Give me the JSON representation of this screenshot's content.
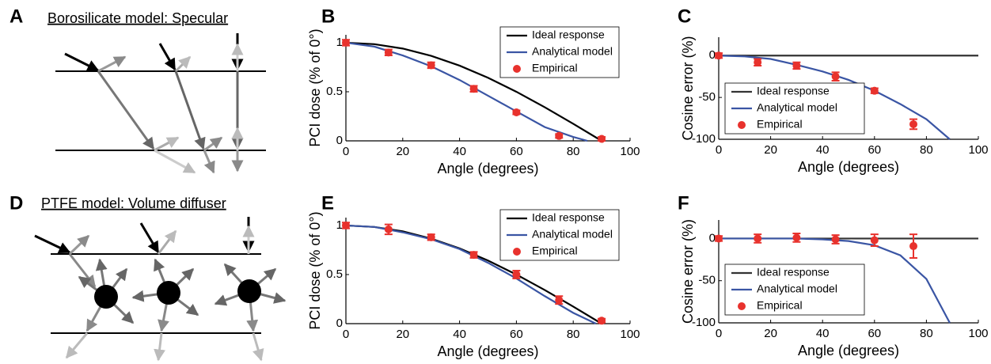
{
  "diagrams": [
    {
      "panel_label": "A",
      "title": "Borosilicate model: Specular"
    },
    {
      "panel_label": "D",
      "title": "PTFE model: Volume diffuser"
    }
  ],
  "chart_data": [
    {
      "type": "line",
      "panel_label": "B",
      "xlabel": "Angle (degrees)",
      "ylabel": "PCI dose (% of 0°)",
      "xlim": [
        0,
        100
      ],
      "xticks": [
        0,
        20,
        40,
        60,
        80,
        100
      ],
      "ylim": [
        0,
        1.08
      ],
      "yticks": [
        0,
        0.5,
        1
      ],
      "legend": "upper right",
      "series": [
        {
          "name": "Ideal response",
          "color": "#000000",
          "style": "line",
          "x": [
            0,
            10,
            20,
            30,
            40,
            50,
            60,
            70,
            80,
            90
          ],
          "values": [
            1,
            0.985,
            0.94,
            0.866,
            0.766,
            0.643,
            0.5,
            0.342,
            0.174,
            0
          ]
        },
        {
          "name": "Analytical model",
          "color": "#3a55a4",
          "style": "line",
          "x": [
            0,
            10,
            20,
            30,
            40,
            50,
            60,
            70,
            80,
            85
          ],
          "values": [
            1,
            0.96,
            0.87,
            0.76,
            0.62,
            0.46,
            0.3,
            0.14,
            0.04,
            0
          ]
        },
        {
          "name": "Empirical",
          "color": "#e8322d",
          "style": "marker",
          "x": [
            0,
            15,
            30,
            45,
            60,
            75,
            90
          ],
          "values": [
            1,
            0.9,
            0.77,
            0.53,
            0.29,
            0.05,
            0.02
          ],
          "errors": [
            0.03,
            0.03,
            0.03,
            0.03,
            0.02,
            0.02,
            0.02
          ]
        }
      ]
    },
    {
      "type": "line",
      "panel_label": "C",
      "xlabel": "Angle (degrees)",
      "ylabel": "Cosine error (%)",
      "xlim": [
        0,
        100
      ],
      "xticks": [
        0,
        20,
        40,
        60,
        80,
        100
      ],
      "ylim": [
        -100,
        22
      ],
      "yticks": [
        -100,
        -50,
        0
      ],
      "legend": "center left",
      "series": [
        {
          "name": "Ideal response",
          "color": "#333333",
          "style": "line",
          "x": [
            0,
            100
          ],
          "values": [
            0,
            0
          ]
        },
        {
          "name": "Analytical model",
          "color": "#3a55a4",
          "style": "line",
          "x": [
            0,
            10,
            20,
            30,
            40,
            50,
            60,
            70,
            80,
            89
          ],
          "values": [
            0,
            -1,
            -4,
            -11,
            -19,
            -29,
            -42,
            -58,
            -76,
            -100
          ]
        },
        {
          "name": "Empirical",
          "color": "#e8322d",
          "style": "marker",
          "x": [
            0,
            15,
            30,
            45,
            60,
            75
          ],
          "values": [
            0,
            -8,
            -12,
            -25,
            -42,
            -82
          ],
          "errors": [
            3,
            4,
            4,
            5,
            3,
            6
          ]
        }
      ]
    },
    {
      "type": "line",
      "panel_label": "E",
      "xlabel": "Angle (degrees)",
      "ylabel": "PCI dose (% of 0°)",
      "xlim": [
        0,
        100
      ],
      "xticks": [
        0,
        20,
        40,
        60,
        80,
        100
      ],
      "ylim": [
        0,
        1.08
      ],
      "yticks": [
        0,
        0.5,
        1
      ],
      "legend": "upper right",
      "series": [
        {
          "name": "Ideal response",
          "color": "#000000",
          "style": "line",
          "x": [
            0,
            10,
            20,
            30,
            40,
            50,
            60,
            70,
            80,
            90
          ],
          "values": [
            1,
            0.985,
            0.94,
            0.866,
            0.766,
            0.643,
            0.5,
            0.342,
            0.174,
            0
          ]
        },
        {
          "name": "Analytical model",
          "color": "#3a55a4",
          "style": "line",
          "x": [
            0,
            10,
            20,
            30,
            40,
            50,
            60,
            70,
            80,
            88
          ],
          "values": [
            1,
            0.985,
            0.93,
            0.86,
            0.76,
            0.62,
            0.46,
            0.28,
            0.11,
            0
          ]
        },
        {
          "name": "Empirical",
          "color": "#e8322d",
          "style": "marker",
          "x": [
            0,
            15,
            30,
            45,
            60,
            75,
            90
          ],
          "values": [
            1,
            0.96,
            0.88,
            0.7,
            0.5,
            0.24,
            0.03
          ],
          "errors": [
            0.03,
            0.05,
            0.03,
            0.03,
            0.04,
            0.04,
            0.02
          ]
        }
      ]
    },
    {
      "type": "line",
      "panel_label": "F",
      "xlabel": "Angle (degrees)",
      "ylabel": "Cosine error (%)",
      "xlim": [
        0,
        100
      ],
      "xticks": [
        0,
        20,
        40,
        60,
        80,
        100
      ],
      "ylim": [
        -100,
        22
      ],
      "yticks": [
        -100,
        -50,
        0
      ],
      "legend": "lower left",
      "series": [
        {
          "name": "Ideal response",
          "color": "#333333",
          "style": "line",
          "x": [
            0,
            100
          ],
          "values": [
            0,
            0
          ]
        },
        {
          "name": "Analytical model",
          "color": "#3a55a4",
          "style": "line",
          "x": [
            0,
            10,
            20,
            30,
            40,
            50,
            60,
            70,
            80,
            89
          ],
          "values": [
            0,
            0,
            0,
            0,
            -1,
            -3,
            -8,
            -20,
            -48,
            -100
          ]
        },
        {
          "name": "Empirical",
          "color": "#e8322d",
          "style": "marker",
          "x": [
            0,
            15,
            30,
            45,
            60,
            75
          ],
          "values": [
            0,
            0,
            1,
            -1,
            -2,
            -9
          ],
          "errors": [
            3,
            5,
            5,
            5,
            7,
            14
          ]
        }
      ]
    }
  ]
}
